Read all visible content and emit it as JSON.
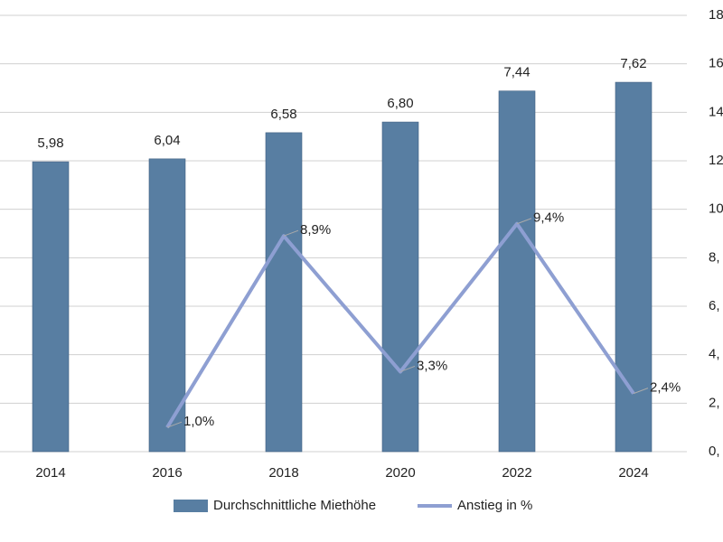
{
  "chart_data": {
    "type": "bar_line",
    "categories": [
      "2014",
      "2016",
      "2018",
      "2020",
      "2022",
      "2024"
    ],
    "series": [
      {
        "name": "Durchschnittliche Miethöhe",
        "type": "bar",
        "color": "#587ea2",
        "values": [
          5.98,
          6.04,
          6.58,
          6.8,
          7.44,
          7.62
        ],
        "value_labels": [
          "5,98",
          "6,04",
          "6,58",
          "6,80",
          "7,44",
          "7,62"
        ]
      },
      {
        "name": "Anstieg in %",
        "type": "line",
        "axis": "y2",
        "color": "#8e9fd2",
        "values": [
          null,
          1.0,
          8.9,
          3.3,
          9.4,
          2.4
        ],
        "value_labels": [
          null,
          "1,0%",
          "8,9%",
          "3,3%",
          "9,4%",
          "2,4%"
        ]
      }
    ],
    "ylim": [
      0,
      9
    ],
    "y2lim": [
      0,
      18
    ],
    "y2ticks": [
      {
        "value": 0,
        "label": "0,"
      },
      {
        "value": 2,
        "label": "2,"
      },
      {
        "value": 4,
        "label": "4,"
      },
      {
        "value": 6,
        "label": "6,"
      },
      {
        "value": 8,
        "label": "8,"
      },
      {
        "value": 10,
        "label": "10"
      },
      {
        "value": 12,
        "label": "12"
      },
      {
        "value": 14,
        "label": "14"
      },
      {
        "value": 16,
        "label": "16"
      },
      {
        "value": 18,
        "label": "18"
      }
    ],
    "grid": true
  }
}
